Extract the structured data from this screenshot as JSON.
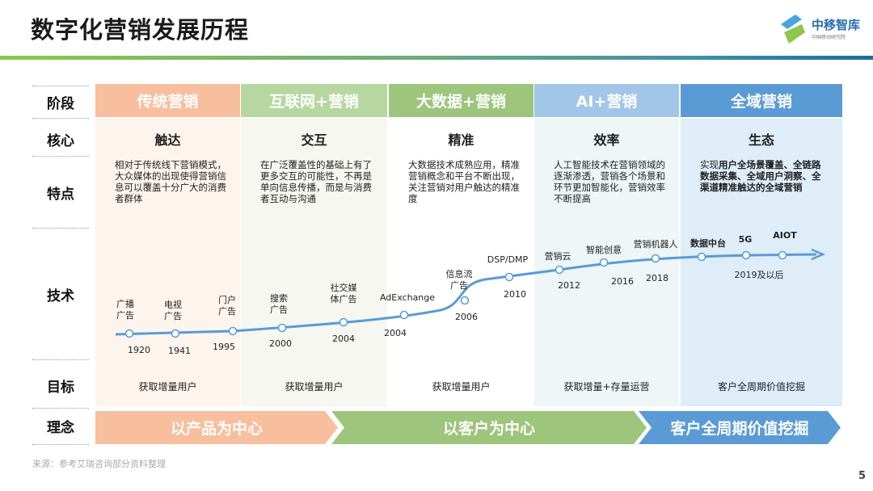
{
  "header": {
    "title": "数字化营销发展历程",
    "logo_name": "中移智库",
    "logo_sub": "中国移动研究院"
  },
  "row_labels": [
    "阶段",
    "核心",
    "特点",
    "技术",
    "目标",
    "理念"
  ],
  "colors": {
    "stage": [
      "#f8bf9e",
      "#b6d8a0",
      "#9dc57b",
      "#a2c6e7",
      "#5b9bd5"
    ],
    "bg": [
      "#fdf4ee",
      "#f5f7f0",
      "#ffffff",
      "#eef6f7",
      "#deedf7"
    ],
    "timeline": "#5b9bd5",
    "concept": [
      "#f8bf9e",
      "#9dc57b",
      "#5b9bd5"
    ]
  },
  "columns": [
    {
      "stage": "传统营销",
      "core": "触达",
      "feature": "相对于传统线下营销模式，大众媒体的出现使得营销信息可以覆盖十分广大的消费者群体",
      "goal": "获取增量用户"
    },
    {
      "stage": "互联网+营销",
      "core": "交互",
      "feature": "在广泛覆盖性的基础上有了更多交互的可能性，不再是单向信息传播，而是与消费者互动与沟通",
      "goal": "获取增量用户"
    },
    {
      "stage": "大数据+营销",
      "core": "精准",
      "feature": "大数据技术成熟应用，精准营销概念和平台不断出现，关注营销对用户触达的精准度",
      "goal": "获取增量用户"
    },
    {
      "stage": "AI+营销",
      "core": "效率",
      "feature": "人工智能技术在营销领域的逐渐渗透，营销各个场景和环节更加智能化，营销效率不断提高",
      "goal": "获取增量+存量运营"
    },
    {
      "stage": "全域营销",
      "core": "生态",
      "feature_prefix": "实现",
      "feature_bold": "用户全场景覆盖、全链路数据采集、全域用户洞察、全渠道精准触达的全域营销",
      "goal": "客户全周期价值挖掘"
    }
  ],
  "timeline": [
    {
      "name": [
        "广播",
        "广告"
      ],
      "year": "1920"
    },
    {
      "name": [
        "电视",
        "广告"
      ],
      "year": "1941"
    },
    {
      "name": [
        "门户",
        "广告"
      ],
      "year": "1995"
    },
    {
      "name": [
        "搜索",
        "广告"
      ],
      "year": "2000"
    },
    {
      "name": [
        "社交媒",
        "体广告"
      ],
      "year": "2004"
    },
    {
      "name": [
        "AdExchange"
      ],
      "year": "2004"
    },
    {
      "name": [
        "信息流",
        "广告"
      ],
      "year": "2006"
    },
    {
      "name": [
        "DSP/DMP"
      ],
      "year": "2010"
    },
    {
      "name": [
        "营销云"
      ],
      "year": "2012"
    },
    {
      "name": [
        "智能创意"
      ],
      "year": "2016"
    },
    {
      "name": [
        "营销机器人"
      ],
      "year": "2018"
    },
    {
      "name": [
        "数据中台"
      ],
      "year": ""
    },
    {
      "name": [
        "5G"
      ],
      "year": ""
    },
    {
      "name": [
        "AIOT"
      ],
      "year": ""
    }
  ],
  "timeline_last_year": "2019及以后",
  "concepts": [
    "以产品为中心",
    "以客户为中心",
    "客户全周期价值挖掘"
  ],
  "footer": {
    "source": "来源：参考艾瑞咨询部分资料整理",
    "page": "5"
  }
}
